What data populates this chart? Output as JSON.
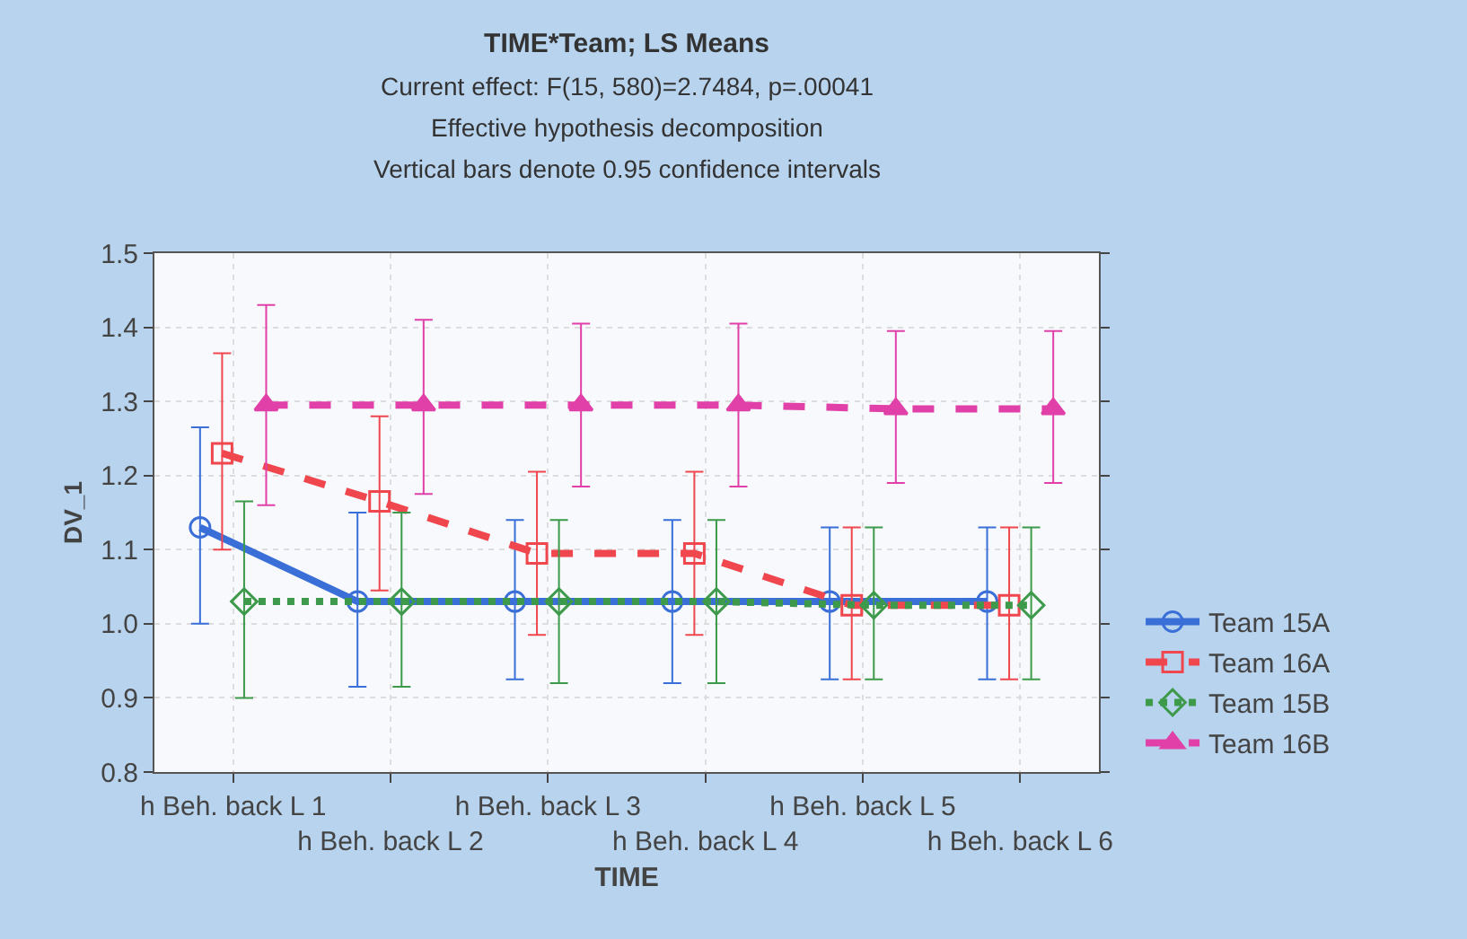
{
  "chart_data": {
    "type": "line",
    "title": "TIME*Team; LS Means",
    "subtitle": "Current effect: F(15, 580)=2.7484, p=.00041",
    "annotations": [
      "Effective hypothesis decomposition",
      "Vertical bars denote 0.95 confidence intervals"
    ],
    "xlabel": "TIME",
    "ylabel": "DV_1",
    "categories": [
      "h Beh. back L 1",
      "h Beh. back L 2",
      "h Beh. back L 3",
      "h Beh. back L 4",
      "h Beh. back L 5",
      "h Beh. back L 6"
    ],
    "series": [
      {
        "name": "Team 15A",
        "color": "#3a6fd8",
        "marker": "circle",
        "line_style": "solid",
        "values": [
          1.13,
          1.03,
          1.03,
          1.03,
          1.03,
          1.03
        ],
        "errors": [
          [
            1.0,
            1.265
          ],
          [
            0.915,
            1.15
          ],
          [
            0.925,
            1.14
          ],
          [
            0.92,
            1.14
          ],
          [
            0.925,
            1.13
          ],
          [
            0.925,
            1.13
          ]
        ]
      },
      {
        "name": "Team 16A",
        "color": "#f0464e",
        "marker": "square",
        "line_style": "dashed",
        "values": [
          1.23,
          1.165,
          1.095,
          1.095,
          1.025,
          1.025
        ],
        "errors": [
          [
            1.1,
            1.365
          ],
          [
            1.045,
            1.28
          ],
          [
            0.985,
            1.205
          ],
          [
            0.985,
            1.205
          ],
          [
            0.925,
            1.13
          ],
          [
            0.925,
            1.13
          ]
        ]
      },
      {
        "name": "Team 15B",
        "color": "#3c9a4a",
        "marker": "diamond",
        "line_style": "dotted",
        "values": [
          1.03,
          1.03,
          1.03,
          1.03,
          1.025,
          1.025
        ],
        "errors": [
          [
            0.9,
            1.165
          ],
          [
            0.915,
            1.15
          ],
          [
            0.92,
            1.14
          ],
          [
            0.92,
            1.14
          ],
          [
            0.925,
            1.13
          ],
          [
            0.925,
            1.13
          ]
        ]
      },
      {
        "name": "Team 16B",
        "color": "#e040a8",
        "marker": "triangle",
        "line_style": "dashed",
        "values": [
          1.295,
          1.295,
          1.295,
          1.295,
          1.29,
          1.29
        ],
        "errors": [
          [
            1.16,
            1.43
          ],
          [
            1.175,
            1.41
          ],
          [
            1.185,
            1.405
          ],
          [
            1.185,
            1.405
          ],
          [
            1.19,
            1.395
          ],
          [
            1.19,
            1.395
          ]
        ]
      }
    ],
    "ylim": [
      0.8,
      1.5
    ],
    "yticks": [
      0.8,
      0.9,
      {
        "value": 1,
        "label": "1.0"
      },
      1.1,
      1.2,
      1.3,
      1.4,
      1.5
    ],
    "grid": true,
    "legend": "bottom right"
  }
}
